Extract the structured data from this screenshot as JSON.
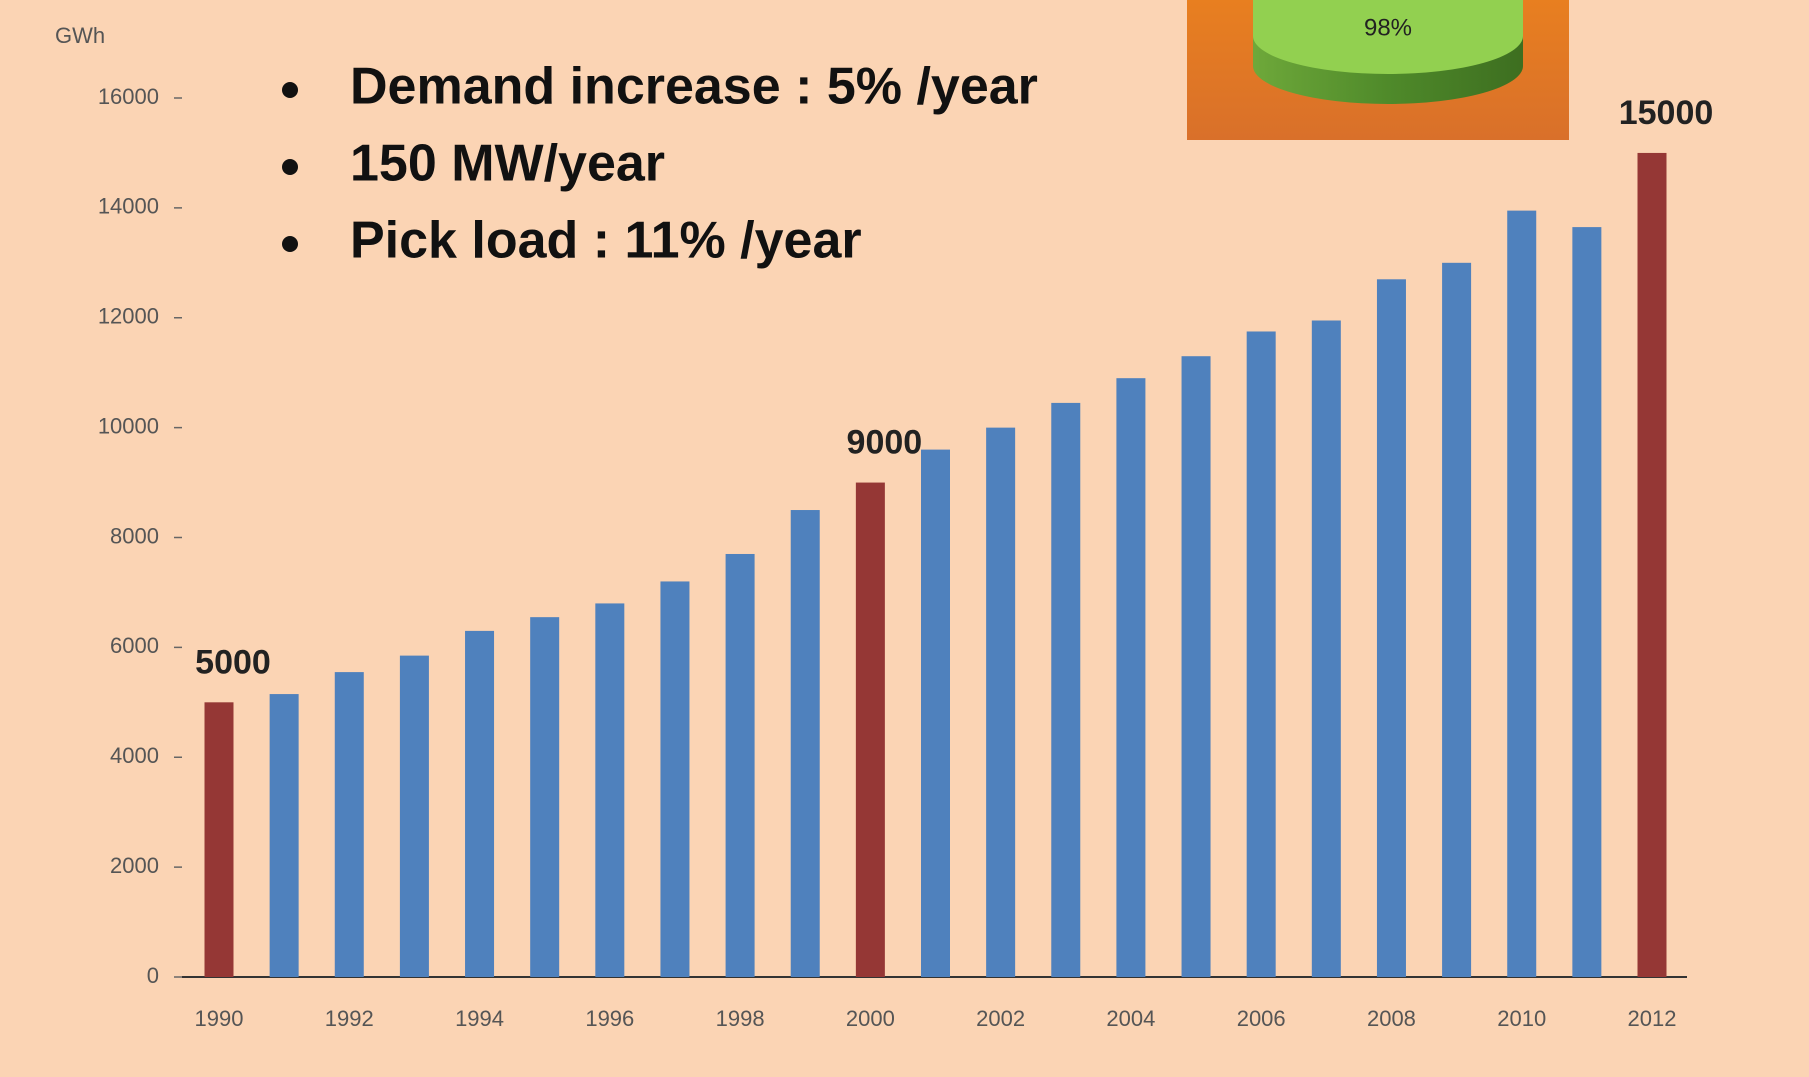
{
  "chart_data": {
    "type": "bar",
    "y_label": "GWh",
    "annotations": [
      "Demand increase : 5% /year",
      "150 MW/year",
      "Pick load : 11% /year"
    ],
    "inset_label": "98%",
    "categories": [
      "1990",
      null,
      "1992",
      null,
      "1994",
      null,
      "1996",
      null,
      "1998",
      null,
      "2000",
      null,
      "2002",
      null,
      "2004",
      null,
      "2006",
      null,
      "2008",
      null,
      "2010",
      null,
      "2012"
    ],
    "values": [
      5000,
      5150,
      5550,
      5850,
      6300,
      6550,
      6800,
      7200,
      7700,
      8500,
      9000,
      9600,
      10000,
      10450,
      10900,
      11300,
      11750,
      11950,
      12700,
      13000,
      13950,
      13650,
      15000
    ],
    "colors": [
      "#953735",
      "#4f81bd",
      "#4f81bd",
      "#4f81bd",
      "#4f81bd",
      "#4f81bd",
      "#4f81bd",
      "#4f81bd",
      "#4f81bd",
      "#4f81bd",
      "#953735",
      "#4f81bd",
      "#4f81bd",
      "#4f81bd",
      "#4f81bd",
      "#4f81bd",
      "#4f81bd",
      "#4f81bd",
      "#4f81bd",
      "#4f81bd",
      "#4f81bd",
      "#4f81bd",
      "#953735"
    ],
    "labeled_bars": [
      0,
      10,
      22
    ],
    "ylim": [
      0,
      16000
    ],
    "yticks": [
      0,
      2000,
      4000,
      6000,
      8000,
      10000,
      12000,
      14000,
      16000
    ],
    "grid": false
  }
}
